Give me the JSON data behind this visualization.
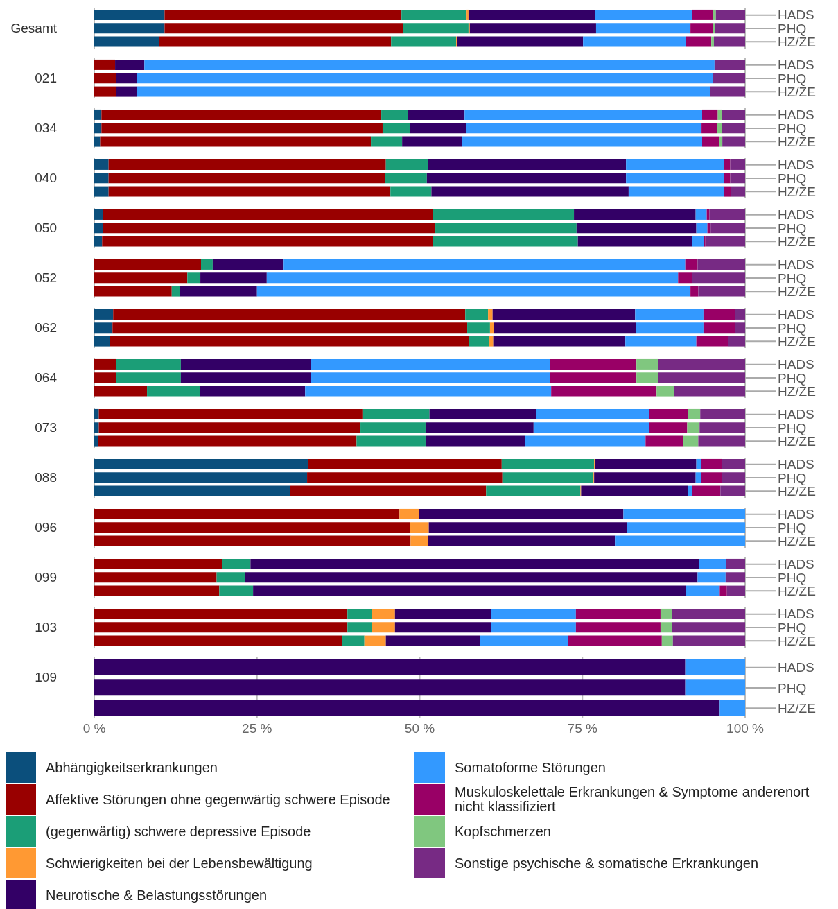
{
  "chart_data": [
    {
      "type": "bar",
      "orientation": "horizontal",
      "stacked": true,
      "title": "Gesamt",
      "categories": [
        "HADS",
        "PHQ",
        "HZ/ZE"
      ],
      "xlim": [
        0,
        100
      ],
      "grid": "x",
      "tick_labels": "y",
      "series": [
        {
          "color": "#0b4f7c",
          "values": [
            10.8,
            10.8,
            10.0
          ]
        },
        {
          "color": "#990000",
          "values": [
            36.4,
            36.6,
            35.6
          ]
        },
        {
          "color": "#1b9e77",
          "values": [
            10.0,
            10.1,
            10.0
          ]
        },
        {
          "color": "#ff9933",
          "values": [
            0.3,
            0.2,
            0.2
          ]
        },
        {
          "color": "#330066",
          "values": [
            19.4,
            19.4,
            19.3
          ]
        },
        {
          "color": "#3399ff",
          "values": [
            14.9,
            14.5,
            15.8
          ]
        },
        {
          "color": "#990066",
          "values": [
            3.2,
            3.5,
            3.9
          ]
        },
        {
          "color": "#80c77f",
          "values": [
            0.5,
            0.3,
            0.4
          ]
        },
        {
          "color": "#772a84",
          "values": [
            4.5,
            4.6,
            4.8
          ]
        }
      ]
    },
    {
      "type": "bar",
      "orientation": "horizontal",
      "stacked": true,
      "title": "021",
      "categories": [
        "HADS",
        "PHQ",
        "HZ/ZE"
      ],
      "xlim": [
        0,
        100
      ],
      "grid": "x",
      "tick_labels": "y",
      "series": [
        {
          "color": "#990000",
          "values": [
            3.2,
            3.4,
            3.4
          ]
        },
        {
          "color": "#330066",
          "values": [
            4.5,
            3.2,
            3.1
          ]
        },
        {
          "color": "#3399ff",
          "values": [
            87.6,
            88.4,
            88.1
          ]
        },
        {
          "color": "#772a84",
          "values": [
            4.7,
            5.0,
            5.4
          ]
        }
      ]
    },
    {
      "type": "bar",
      "orientation": "horizontal",
      "stacked": true,
      "title": "034",
      "categories": [
        "HADS",
        "PHQ",
        "HZ/ZE"
      ],
      "xlim": [
        0,
        100
      ],
      "grid": "x",
      "tick_labels": "y",
      "series": [
        {
          "color": "#0b4f7c",
          "values": [
            1.1,
            1.1,
            0.9
          ]
        },
        {
          "color": "#990000",
          "values": [
            43.0,
            43.2,
            41.6
          ]
        },
        {
          "color": "#1b9e77",
          "values": [
            4.1,
            4.2,
            4.8
          ]
        },
        {
          "color": "#330066",
          "values": [
            8.7,
            8.6,
            9.2
          ]
        },
        {
          "color": "#3399ff",
          "values": [
            36.5,
            36.2,
            36.9
          ]
        },
        {
          "color": "#990066",
          "values": [
            2.4,
            2.4,
            2.6
          ]
        },
        {
          "color": "#80c77f",
          "values": [
            0.6,
            0.7,
            0.5
          ]
        },
        {
          "color": "#772a84",
          "values": [
            3.6,
            3.6,
            3.5
          ]
        }
      ]
    },
    {
      "type": "bar",
      "orientation": "horizontal",
      "stacked": true,
      "title": "040",
      "categories": [
        "HADS",
        "PHQ",
        "HZ/ZE"
      ],
      "xlim": [
        0,
        100
      ],
      "grid": "x",
      "tick_labels": "y",
      "series": [
        {
          "color": "#0b4f7c",
          "values": [
            2.2,
            2.2,
            2.2
          ]
        },
        {
          "color": "#990000",
          "values": [
            42.6,
            42.5,
            43.3
          ]
        },
        {
          "color": "#1b9e77",
          "values": [
            6.5,
            6.4,
            6.3
          ]
        },
        {
          "color": "#330066",
          "values": [
            30.4,
            30.6,
            30.3
          ]
        },
        {
          "color": "#3399ff",
          "values": [
            15.0,
            15.0,
            14.7
          ]
        },
        {
          "color": "#990066",
          "values": [
            1.0,
            1.0,
            1.0
          ]
        },
        {
          "color": "#772a84",
          "values": [
            2.3,
            2.3,
            2.2
          ]
        }
      ]
    },
    {
      "type": "bar",
      "orientation": "horizontal",
      "stacked": true,
      "title": "050",
      "categories": [
        "HADS",
        "PHQ",
        "HZ/ZE"
      ],
      "xlim": [
        0,
        100
      ],
      "grid": "x",
      "tick_labels": "y",
      "series": [
        {
          "color": "#0b4f7c",
          "values": [
            1.3,
            1.3,
            1.2
          ]
        },
        {
          "color": "#990000",
          "values": [
            50.7,
            51.1,
            50.8
          ]
        },
        {
          "color": "#1b9e77",
          "values": [
            21.7,
            21.7,
            22.3
          ]
        },
        {
          "color": "#330066",
          "values": [
            18.7,
            18.4,
            17.5
          ]
        },
        {
          "color": "#3399ff",
          "values": [
            1.7,
            1.7,
            1.9
          ]
        },
        {
          "color": "#990066",
          "values": [
            0.4,
            0.5,
            0.2
          ]
        },
        {
          "color": "#772a84",
          "values": [
            5.5,
            5.3,
            6.1
          ]
        }
      ]
    },
    {
      "type": "bar",
      "orientation": "horizontal",
      "stacked": true,
      "title": "052",
      "categories": [
        "HADS",
        "PHQ",
        "HZ/ZE"
      ],
      "xlim": [
        0,
        100
      ],
      "grid": "x",
      "tick_labels": "y",
      "series": [
        {
          "color": "#990000",
          "values": [
            16.4,
            14.3,
            11.9
          ]
        },
        {
          "color": "#1b9e77",
          "values": [
            1.8,
            2.0,
            1.2
          ]
        },
        {
          "color": "#330066",
          "values": [
            10.9,
            10.2,
            11.9
          ]
        },
        {
          "color": "#3399ff",
          "values": [
            61.7,
            63.2,
            66.6
          ]
        },
        {
          "color": "#990066",
          "values": [
            1.9,
            2.1,
            1.2
          ]
        },
        {
          "color": "#772a84",
          "values": [
            7.3,
            8.2,
            7.2
          ]
        }
      ]
    },
    {
      "type": "bar",
      "orientation": "horizontal",
      "stacked": true,
      "title": "062",
      "categories": [
        "HADS",
        "PHQ",
        "HZ/ZE"
      ],
      "xlim": [
        0,
        100
      ],
      "grid": "x",
      "tick_labels": "y",
      "series": [
        {
          "color": "#0b4f7c",
          "values": [
            2.9,
            2.8,
            2.4
          ]
        },
        {
          "color": "#990000",
          "values": [
            54.1,
            54.5,
            55.2
          ]
        },
        {
          "color": "#1b9e77",
          "values": [
            3.5,
            3.5,
            3.1
          ]
        },
        {
          "color": "#ff9933",
          "values": [
            0.7,
            0.6,
            0.6
          ]
        },
        {
          "color": "#330066",
          "values": [
            21.9,
            21.8,
            20.3
          ]
        },
        {
          "color": "#3399ff",
          "values": [
            10.5,
            10.4,
            10.9
          ]
        },
        {
          "color": "#990066",
          "values": [
            4.9,
            4.9,
            4.9
          ]
        },
        {
          "color": "#772a84",
          "values": [
            1.5,
            1.5,
            2.6
          ]
        }
      ]
    },
    {
      "type": "bar",
      "orientation": "horizontal",
      "stacked": true,
      "title": "064",
      "categories": [
        "HADS",
        "PHQ",
        "HZ/ZE"
      ],
      "xlim": [
        0,
        100
      ],
      "grid": "x",
      "tick_labels": "y",
      "series": [
        {
          "color": "#990000",
          "values": [
            3.3,
            3.3,
            8.1
          ]
        },
        {
          "color": "#1b9e77",
          "values": [
            10.0,
            10.0,
            8.1
          ]
        },
        {
          "color": "#330066",
          "values": [
            20.0,
            20.0,
            16.2
          ]
        },
        {
          "color": "#3399ff",
          "values": [
            36.7,
            36.7,
            37.8
          ]
        },
        {
          "color": "#990066",
          "values": [
            13.3,
            13.3,
            16.2
          ]
        },
        {
          "color": "#80c77f",
          "values": [
            3.3,
            3.3,
            2.7
          ]
        },
        {
          "color": "#772a84",
          "values": [
            13.4,
            13.4,
            10.9
          ]
        }
      ]
    },
    {
      "type": "bar",
      "orientation": "horizontal",
      "stacked": true,
      "title": "073",
      "categories": [
        "HADS",
        "PHQ",
        "HZ/ZE"
      ],
      "xlim": [
        0,
        100
      ],
      "grid": "x",
      "tick_labels": "y",
      "series": [
        {
          "color": "#0b4f7c",
          "values": [
            0.7,
            0.7,
            0.6
          ]
        },
        {
          "color": "#990000",
          "values": [
            40.5,
            40.2,
            39.7
          ]
        },
        {
          "color": "#1b9e77",
          "values": [
            10.3,
            10.0,
            10.6
          ]
        },
        {
          "color": "#330066",
          "values": [
            16.4,
            16.6,
            15.3
          ]
        },
        {
          "color": "#3399ff",
          "values": [
            17.4,
            17.7,
            18.5
          ]
        },
        {
          "color": "#990066",
          "values": [
            5.9,
            5.9,
            5.8
          ]
        },
        {
          "color": "#80c77f",
          "values": [
            1.9,
            1.9,
            2.3
          ]
        },
        {
          "color": "#772a84",
          "values": [
            6.9,
            7.0,
            7.2
          ]
        }
      ]
    },
    {
      "type": "bar",
      "orientation": "horizontal",
      "stacked": true,
      "title": "088",
      "categories": [
        "HADS",
        "PHQ",
        "HZ/ZE"
      ],
      "xlim": [
        0,
        100
      ],
      "grid": "x",
      "tick_labels": "y",
      "series": [
        {
          "color": "#0b4f7c",
          "values": [
            32.8,
            32.7,
            30.1
          ]
        },
        {
          "color": "#990000",
          "values": [
            29.8,
            30.0,
            30.1
          ]
        },
        {
          "color": "#1b9e77",
          "values": [
            14.2,
            14.0,
            14.5
          ]
        },
        {
          "color": "#ff9933",
          "values": [
            0.1,
            0.1,
            0.1
          ]
        },
        {
          "color": "#330066",
          "values": [
            15.6,
            15.6,
            16.4
          ]
        },
        {
          "color": "#3399ff",
          "values": [
            0.7,
            0.8,
            0.7
          ]
        },
        {
          "color": "#990066",
          "values": [
            3.2,
            3.2,
            4.3
          ]
        },
        {
          "color": "#772a84",
          "values": [
            3.6,
            3.6,
            3.8
          ]
        }
      ]
    },
    {
      "type": "bar",
      "orientation": "horizontal",
      "stacked": true,
      "title": "096",
      "categories": [
        "HADS",
        "PHQ",
        "HZ/ZE"
      ],
      "xlim": [
        0,
        100
      ],
      "grid": "x",
      "tick_labels": "y",
      "series": [
        {
          "color": "#990000",
          "values": [
            46.9,
            48.5,
            48.6
          ]
        },
        {
          "color": "#ff9933",
          "values": [
            3.0,
            2.9,
            2.7
          ]
        },
        {
          "color": "#330066",
          "values": [
            31.4,
            30.4,
            28.7
          ]
        },
        {
          "color": "#3399ff",
          "values": [
            18.7,
            18.2,
            20.0
          ]
        }
      ]
    },
    {
      "type": "bar",
      "orientation": "horizontal",
      "stacked": true,
      "title": "099",
      "categories": [
        "HADS",
        "PHQ",
        "HZ/ZE"
      ],
      "xlim": [
        0,
        100
      ],
      "grid": "x",
      "tick_labels": "y",
      "series": [
        {
          "color": "#990000",
          "values": [
            19.7,
            18.8,
            19.2
          ]
        },
        {
          "color": "#1b9e77",
          "values": [
            4.3,
            4.4,
            5.2
          ]
        },
        {
          "color": "#330066",
          "values": [
            68.9,
            69.5,
            66.5
          ]
        },
        {
          "color": "#3399ff",
          "values": [
            4.2,
            4.3,
            5.2
          ]
        },
        {
          "color": "#990066",
          "values": [
            0,
            0,
            1.1
          ]
        },
        {
          "color": "#772a84",
          "values": [
            2.9,
            3.0,
            2.8
          ]
        }
      ]
    },
    {
      "type": "bar",
      "orientation": "horizontal",
      "stacked": true,
      "title": "103",
      "categories": [
        "HADS",
        "PHQ",
        "HZ/ZE"
      ],
      "xlim": [
        0,
        100
      ],
      "grid": "x",
      "tick_labels": "y",
      "series": [
        {
          "color": "#990000",
          "values": [
            38.9,
            38.9,
            38.1
          ]
        },
        {
          "color": "#1b9e77",
          "values": [
            3.7,
            3.7,
            3.4
          ]
        },
        {
          "color": "#ff9933",
          "values": [
            3.6,
            3.6,
            3.3
          ]
        },
        {
          "color": "#330066",
          "values": [
            14.8,
            14.8,
            14.5
          ]
        },
        {
          "color": "#3399ff",
          "values": [
            13.0,
            13.0,
            13.5
          ]
        },
        {
          "color": "#990066",
          "values": [
            13.0,
            13.0,
            14.4
          ]
        },
        {
          "color": "#80c77f",
          "values": [
            1.8,
            1.8,
            1.7
          ]
        },
        {
          "color": "#772a84",
          "values": [
            11.2,
            11.2,
            11.1
          ]
        }
      ]
    },
    {
      "type": "bar",
      "orientation": "horizontal",
      "stacked": true,
      "title": "109",
      "categories": [
        "HADS",
        "PHQ",
        "HZ/ZE"
      ],
      "xlim": [
        0,
        100
      ],
      "xticks": [
        {
          "value": 0,
          "label": "0 %"
        },
        {
          "value": 25,
          "label": "25 %"
        },
        {
          "value": 50,
          "label": "50 %"
        },
        {
          "value": 75,
          "label": "75 %"
        },
        {
          "value": 100,
          "label": "100 %"
        }
      ],
      "grid": "x",
      "legend": "bottom",
      "series": [
        {
          "name": "Abhängigkeitserkrankungen",
          "color": "#0b4f7c",
          "values": [
            0,
            0,
            0
          ]
        },
        {
          "name": "Affektive Störungen ohne gegenwärtig schwere Episode",
          "color": "#990000",
          "values": [
            0,
            0,
            0
          ]
        },
        {
          "name": "(gegenwärtig) schwere depressive Episode",
          "color": "#1b9e77",
          "values": [
            0,
            0,
            0
          ]
        },
        {
          "name": "Schwierigkeiten bei der Lebensbewältigung",
          "color": "#ff9933",
          "values": [
            0,
            0,
            0
          ]
        },
        {
          "name": "Neurotische & Belastungsstörungen",
          "color": "#330066",
          "values": [
            90.8,
            90.8,
            96.1
          ]
        },
        {
          "name": "Somatoforme Störungen",
          "color": "#3399ff",
          "values": [
            9.2,
            9.2,
            3.9
          ]
        },
        {
          "name": "Muskuloskelettale Erkrankungen & Symptome anderenort nicht klassifiziert",
          "color": "#990066",
          "values": [
            0,
            0,
            0
          ]
        },
        {
          "name": "Kopfschmerzen",
          "color": "#80c77f",
          "values": [
            0,
            0,
            0
          ]
        },
        {
          "name": "Sonstige psychische & somatische Erkrankungen",
          "color": "#772a84",
          "values": [
            0,
            0,
            0
          ]
        }
      ]
    }
  ]
}
